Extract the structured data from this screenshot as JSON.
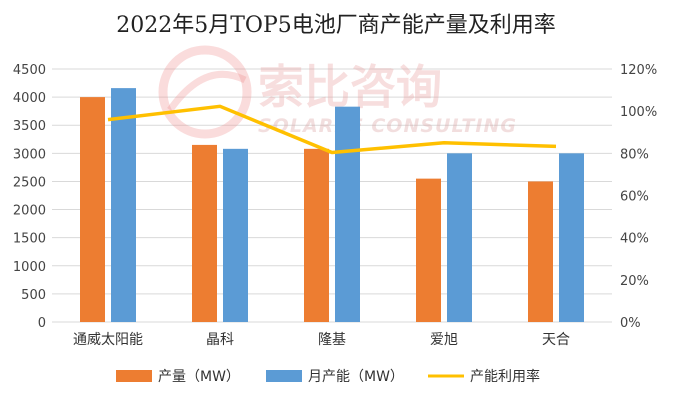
{
  "chart_data": {
    "type": "bar",
    "title": "2022年5月TOP5电池厂商产能产量及利用率",
    "categories": [
      "通威太阳能",
      "晶科",
      "隆基",
      "爱旭",
      "天合"
    ],
    "series": [
      {
        "name": "产量（MW）",
        "kind": "bar",
        "axis": "left",
        "color": "#ed7d31",
        "values": [
          4000,
          3150,
          3080,
          2550,
          2500
        ]
      },
      {
        "name": "月产能（MW）",
        "kind": "bar",
        "axis": "left",
        "color": "#5b9bd5",
        "values": [
          4160,
          3080,
          3830,
          3000,
          3000
        ]
      },
      {
        "name": "产能利用率",
        "kind": "line",
        "axis": "right",
        "color": "#ffc000",
        "values": [
          96,
          102.3,
          80.4,
          85,
          83.3
        ]
      }
    ],
    "y_left": {
      "min": 0,
      "max": 4500,
      "step": 500,
      "ticks": [
        "0",
        "500",
        "1000",
        "1500",
        "2000",
        "2500",
        "3000",
        "3500",
        "4000",
        "4500"
      ]
    },
    "y_right": {
      "min": 0,
      "max": 120,
      "step": 20,
      "ticks": [
        "0%",
        "20%",
        "40%",
        "60%",
        "80%",
        "100%",
        "120%"
      ]
    },
    "legend_position": "bottom",
    "grid": true
  },
  "watermark": {
    "cn": "索比咨询",
    "en": "SOLARBE CONSULTING"
  }
}
